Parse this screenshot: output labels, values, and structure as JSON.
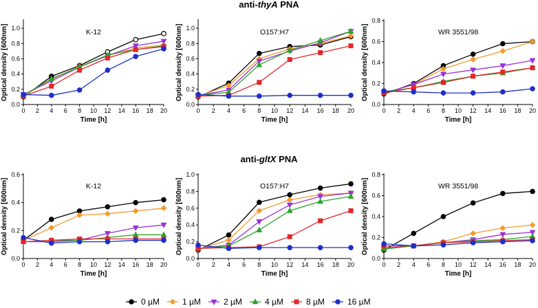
{
  "colors": {
    "0": "#000000",
    "1": "#f39a2b",
    "2": "#9b30d9",
    "4": "#2aa52a",
    "8": "#e4262b",
    "16": "#1e2fc8"
  },
  "section_headers": [
    {
      "prefix": "anti-",
      "gene": "thyA",
      "suffix": " PNA"
    },
    {
      "prefix": "anti-",
      "gene": "gltX",
      "suffix": " PNA"
    }
  ],
  "legend": [
    {
      "key": "0",
      "label": "0 µM",
      "marker": "circle"
    },
    {
      "key": "1",
      "label": "1 µM",
      "marker": "diamond"
    },
    {
      "key": "2",
      "label": "2 µM",
      "marker": "tri-down"
    },
    {
      "key": "4",
      "label": "4 µM",
      "marker": "tri-up"
    },
    {
      "key": "8",
      "label": "8 µM",
      "marker": "square"
    },
    {
      "key": "16",
      "label": "16 µM",
      "marker": "circle"
    }
  ],
  "chart_data": [
    {
      "type": "line",
      "title": "K-12",
      "xlabel": "Time [h]",
      "ylabel": "Optical density [600nm]",
      "xlim": [
        0,
        20
      ],
      "ylim": [
        0,
        1.1
      ],
      "xticks": [
        "0",
        "2",
        "4",
        "6",
        "8",
        "10",
        "12",
        "14",
        "16",
        "18",
        "20"
      ],
      "yticks": [
        "0.0",
        "0.2",
        "0.4",
        "0.6",
        "0.8",
        "1.0"
      ],
      "x": [
        0,
        4,
        8,
        12,
        16,
        20
      ],
      "series": [
        {
          "name": "0 µM",
          "values": [
            0.1,
            0.37,
            0.51,
            0.69,
            0.85,
            0.93
          ]
        },
        {
          "name": "1 µM",
          "values": [
            0.11,
            0.33,
            0.5,
            0.64,
            0.74,
            0.78
          ]
        },
        {
          "name": "2 µM",
          "values": [
            0.13,
            0.31,
            0.49,
            0.64,
            0.77,
            0.83
          ]
        },
        {
          "name": "4 µM",
          "values": [
            0.12,
            0.34,
            0.49,
            0.65,
            0.72,
            0.77
          ]
        },
        {
          "name": "8 µM",
          "values": [
            0.11,
            0.24,
            0.45,
            0.61,
            0.72,
            0.76
          ]
        },
        {
          "name": "16 µM",
          "values": [
            0.13,
            0.12,
            0.19,
            0.45,
            0.63,
            0.73
          ]
        }
      ]
    },
    {
      "type": "line",
      "title": "O157:H7",
      "xlabel": "Time [h]",
      "ylabel": "Optical density [600nm]",
      "xlim": [
        0,
        20
      ],
      "ylim": [
        0,
        1.1
      ],
      "xticks": [
        "0",
        "2",
        "4",
        "6",
        "8",
        "10",
        "12",
        "14",
        "16",
        "18",
        "20"
      ],
      "yticks": [
        "0.0",
        "0.2",
        "0.4",
        "0.6",
        "0.8",
        "1.0"
      ],
      "x": [
        0,
        4,
        8,
        12,
        16,
        20
      ],
      "series": [
        {
          "name": "0 µM",
          "values": [
            0.1,
            0.28,
            0.67,
            0.76,
            0.78,
            0.89
          ]
        },
        {
          "name": "1 µM",
          "values": [
            0.11,
            0.25,
            0.6,
            0.73,
            0.8,
            0.9
          ]
        },
        {
          "name": "2 µM",
          "values": [
            0.12,
            0.19,
            0.57,
            0.7,
            0.81,
            0.96
          ]
        },
        {
          "name": "4 µM",
          "values": [
            0.12,
            0.16,
            0.52,
            0.71,
            0.84,
            0.96
          ]
        },
        {
          "name": "8 µM",
          "values": [
            0.11,
            0.12,
            0.29,
            0.59,
            0.68,
            0.77
          ]
        },
        {
          "name": "16 µM",
          "values": [
            0.13,
            0.11,
            0.11,
            0.12,
            0.12,
            0.12
          ]
        }
      ]
    },
    {
      "type": "line",
      "title": "WR 3551/98",
      "xlabel": "Time [h]",
      "ylabel": "Optical density [600nm]",
      "xlim": [
        0,
        20
      ],
      "ylim": [
        0,
        0.8
      ],
      "xticks": [
        "0",
        "2",
        "4",
        "6",
        "8",
        "10",
        "12",
        "14",
        "16",
        "18",
        "20"
      ],
      "yticks": [
        "0.0",
        "0.2",
        "0.4",
        "0.6",
        "0.8"
      ],
      "x": [
        0,
        4,
        8,
        12,
        16,
        20
      ],
      "series": [
        {
          "name": "0 µM",
          "values": [
            0.1,
            0.2,
            0.37,
            0.48,
            0.58,
            0.6
          ]
        },
        {
          "name": "1 µM",
          "values": [
            0.11,
            0.19,
            0.34,
            0.43,
            0.51,
            0.6
          ]
        },
        {
          "name": "2 µM",
          "values": [
            0.11,
            0.19,
            0.29,
            0.33,
            0.37,
            0.42
          ]
        },
        {
          "name": "4 µM",
          "values": [
            0.12,
            0.16,
            0.22,
            0.27,
            0.3,
            0.35
          ]
        },
        {
          "name": "8 µM",
          "values": [
            0.11,
            0.16,
            0.21,
            0.27,
            0.31,
            0.35
          ]
        },
        {
          "name": "16 µM",
          "values": [
            0.13,
            0.12,
            0.11,
            0.11,
            0.12,
            0.15
          ]
        }
      ]
    },
    {
      "type": "line",
      "title": "K-12",
      "xlabel": "Time [h]",
      "ylabel": "Optical density [600nm]",
      "xlim": [
        0,
        20
      ],
      "ylim": [
        0,
        0.6
      ],
      "xticks": [
        "0",
        "2",
        "4",
        "6",
        "8",
        "10",
        "12",
        "14",
        "16",
        "18",
        "20"
      ],
      "yticks": [
        "0.0",
        "0.2",
        "0.4",
        "0.6"
      ],
      "x": [
        0,
        4,
        8,
        12,
        16,
        20
      ],
      "series": [
        {
          "name": "0 µM",
          "values": [
            0.13,
            0.28,
            0.34,
            0.37,
            0.4,
            0.42
          ]
        },
        {
          "name": "1 µM",
          "values": [
            0.13,
            0.22,
            0.31,
            0.32,
            0.34,
            0.36
          ]
        },
        {
          "name": "2 µM",
          "values": [
            0.12,
            0.12,
            0.13,
            0.18,
            0.22,
            0.24
          ]
        },
        {
          "name": "4 µM",
          "values": [
            0.12,
            0.13,
            0.13,
            0.15,
            0.17,
            0.17
          ]
        },
        {
          "name": "8 µM",
          "values": [
            0.12,
            0.13,
            0.14,
            0.14,
            0.14,
            0.14
          ]
        },
        {
          "name": "16 µM",
          "values": [
            0.15,
            0.11,
            0.12,
            0.12,
            0.13,
            0.13
          ]
        }
      ]
    },
    {
      "type": "line",
      "title": "O157:H7",
      "xlabel": "Time [h]",
      "ylabel": "Optical density [600nm]",
      "xlim": [
        0,
        20
      ],
      "ylim": [
        0,
        1.0
      ],
      "xticks": [
        "0",
        "2",
        "4",
        "6",
        "8",
        "10",
        "12",
        "14",
        "16",
        "18",
        "20"
      ],
      "yticks": [
        "0.0",
        "0.2",
        "0.4",
        "0.6",
        "0.8",
        "1.0"
      ],
      "x": [
        0,
        4,
        8,
        12,
        16,
        20
      ],
      "series": [
        {
          "name": "0 µM",
          "values": [
            0.1,
            0.28,
            0.67,
            0.76,
            0.84,
            0.89
          ]
        },
        {
          "name": "1 µM",
          "values": [
            0.11,
            0.22,
            0.57,
            0.7,
            0.76,
            0.78
          ]
        },
        {
          "name": "2 µM",
          "values": [
            0.12,
            0.16,
            0.44,
            0.64,
            0.74,
            0.78
          ]
        },
        {
          "name": "4 µM",
          "values": [
            0.12,
            0.15,
            0.34,
            0.57,
            0.68,
            0.74
          ]
        },
        {
          "name": "8 µM",
          "values": [
            0.12,
            0.13,
            0.14,
            0.26,
            0.45,
            0.57
          ]
        },
        {
          "name": "16 µM",
          "values": [
            0.16,
            0.12,
            0.13,
            0.13,
            0.13,
            0.13
          ]
        }
      ]
    },
    {
      "type": "line",
      "title": "WR 3551/98",
      "xlabel": "Time [h]",
      "ylabel": "Optical density [600nm]",
      "xlim": [
        0,
        20
      ],
      "ylim": [
        0,
        0.8
      ],
      "xticks": [
        "0",
        "2",
        "4",
        "6",
        "8",
        "10",
        "12",
        "14",
        "16",
        "18",
        "20"
      ],
      "yticks": [
        "0.0",
        "0.2",
        "0.4",
        "0.6",
        "0.8"
      ],
      "x": [
        0,
        4,
        8,
        12,
        16,
        20
      ],
      "series": [
        {
          "name": "0 µM",
          "values": [
            0.08,
            0.24,
            0.4,
            0.53,
            0.62,
            0.64
          ]
        },
        {
          "name": "1 µM",
          "values": [
            0.1,
            0.12,
            0.16,
            0.24,
            0.29,
            0.32
          ]
        },
        {
          "name": "2 µM",
          "values": [
            0.1,
            0.12,
            0.15,
            0.18,
            0.23,
            0.25
          ]
        },
        {
          "name": "4 µM",
          "values": [
            0.09,
            0.12,
            0.15,
            0.17,
            0.18,
            0.21
          ]
        },
        {
          "name": "8 µM",
          "values": [
            0.12,
            0.12,
            0.15,
            0.16,
            0.17,
            0.18
          ]
        },
        {
          "name": "16 µM",
          "values": [
            0.14,
            0.12,
            0.13,
            0.15,
            0.16,
            0.17
          ]
        }
      ]
    }
  ]
}
